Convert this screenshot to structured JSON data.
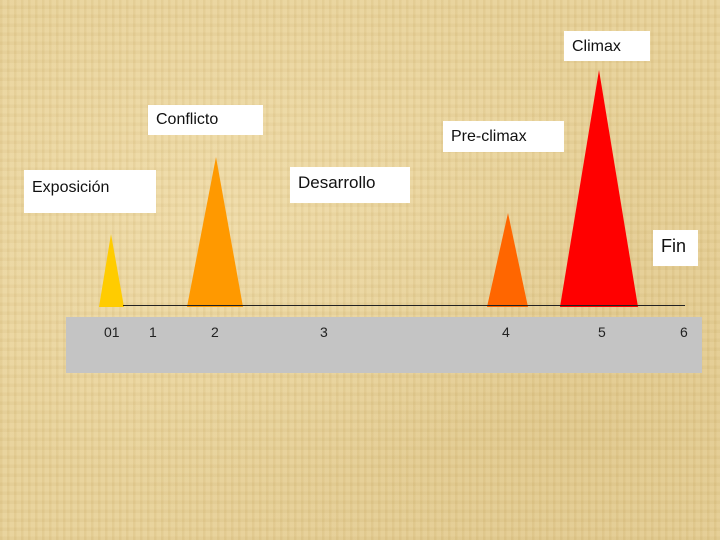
{
  "labels": {
    "climax": "Climax",
    "conflicto": "Conflicto",
    "preclimax": "Pre-climax",
    "desarrollo": "Desarrollo",
    "exposicion": "Exposición",
    "fin": "Fin"
  },
  "ticks": [
    "01",
    "1",
    "2",
    "3",
    "4",
    "5",
    "6"
  ],
  "colors": {
    "exposicion": "#ffcc00",
    "conflicto": "#ff9900",
    "preclimax": "#ff6600",
    "climax": "#ff0000",
    "timeline": "#c4c4c4"
  }
}
